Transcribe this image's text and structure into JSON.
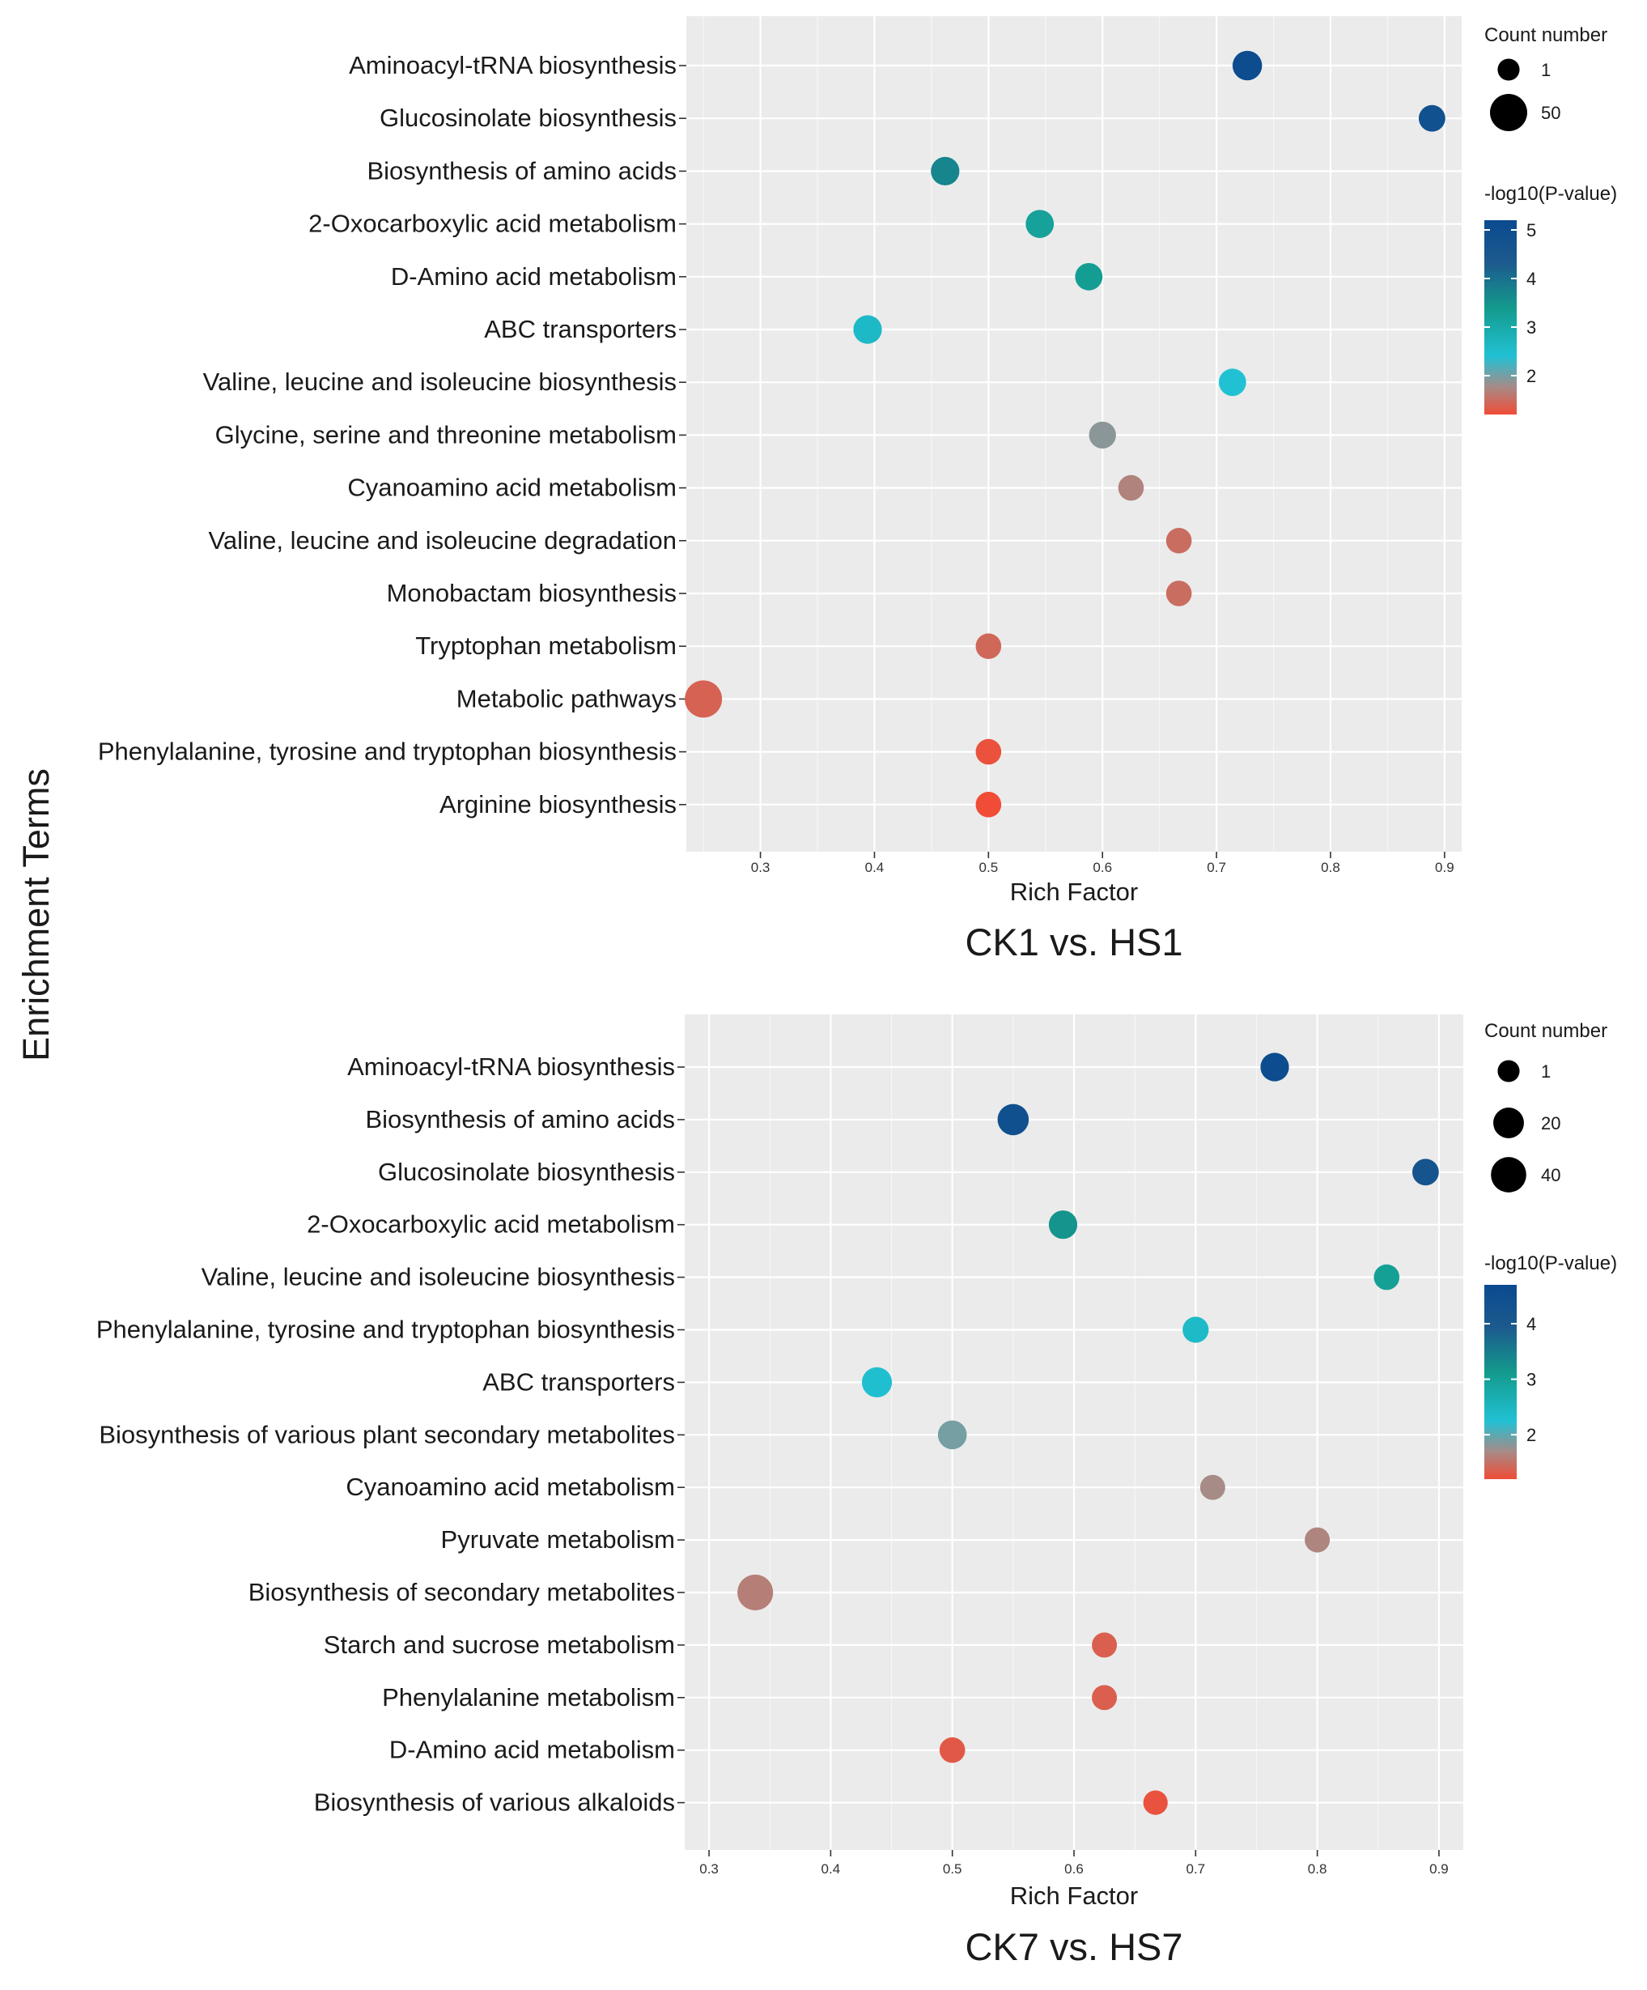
{
  "y_axis_title": "Enrichment Terms",
  "chart_data": [
    {
      "type": "scatter",
      "title": "CK1 vs. HS1",
      "xlabel": "Rich Factor",
      "ylabel": "Enrichment Terms",
      "xlim": [
        0.235,
        0.915
      ],
      "xticks": [
        0.3,
        0.4,
        0.5,
        0.6,
        0.7,
        0.8,
        0.9
      ],
      "xtick_labels": [
        "0.3",
        "0.4",
        "0.5",
        "0.6",
        "0.7",
        "0.8",
        "0.9"
      ],
      "terms": [
        "Aminoacyl-tRNA biosynthesis",
        "Glucosinolate biosynthesis",
        "Biosynthesis of amino acids",
        "2-Oxocarboxylic acid metabolism",
        "D-Amino acid metabolism",
        "ABC transporters",
        "Valine, leucine and isoleucine biosynthesis",
        "Glycine, serine and threonine metabolism",
        "Cyanoamino acid metabolism",
        "Valine, leucine and isoleucine degradation",
        "Monobactam biosynthesis",
        "Tryptophan metabolism",
        "Metabolic pathways",
        "Phenylalanine, tyrosine and tryptophan biosynthesis",
        "Arginine biosynthesis"
      ],
      "rich_factor": [
        0.727,
        0.889,
        0.462,
        0.545,
        0.588,
        0.394,
        0.714,
        0.6,
        0.625,
        0.667,
        0.667,
        0.5,
        0.25,
        0.5,
        0.5
      ],
      "neg_log10_p": [
        5.1,
        4.8,
        3.7,
        3.2,
        3.3,
        2.6,
        2.4,
        1.9,
        1.7,
        1.5,
        1.5,
        1.45,
        1.4,
        1.25,
        1.2
      ],
      "count": [
        16,
        8,
        13,
        12,
        10,
        13,
        10,
        9,
        6,
        6,
        6,
        6,
        50,
        6,
        6
      ],
      "size_legend": {
        "title": "Count number",
        "values": [
          1,
          50
        ],
        "labels": [
          "1",
          "50"
        ]
      },
      "color_legend": {
        "title": "-log10(P-value)",
        "min": 1.2,
        "max": 5.2,
        "ticks": [
          2,
          3,
          4,
          5
        ],
        "tick_labels": [
          "2",
          "3",
          "4",
          "5"
        ]
      }
    },
    {
      "type": "scatter",
      "title": "CK7 vs. HS7",
      "xlabel": "Rich Factor",
      "ylabel": "Enrichment Terms",
      "xlim": [
        0.28,
        0.92
      ],
      "xticks": [
        0.3,
        0.4,
        0.5,
        0.6,
        0.7,
        0.8,
        0.9
      ],
      "xtick_labels": [
        "0.3",
        "0.4",
        "0.5",
        "0.6",
        "0.7",
        "0.8",
        "0.9"
      ],
      "terms": [
        "Aminoacyl-tRNA biosynthesis",
        "Biosynthesis of amino acids",
        "Glucosinolate biosynthesis",
        "2-Oxocarboxylic acid metabolism",
        "Valine, leucine and isoleucine biosynthesis",
        "Phenylalanine, tyrosine and tryptophan biosynthesis",
        "ABC transporters",
        "Biosynthesis of various plant secondary metabolites",
        "Cyanoamino acid metabolism",
        "Pyruvate metabolism",
        "Biosynthesis of secondary metabolites",
        "Starch and sucrose metabolism",
        "Phenylalanine metabolism",
        "D-Amino acid metabolism",
        "Biosynthesis of various alkaloids"
      ],
      "rich_factor": [
        0.765,
        0.55,
        0.889,
        0.591,
        0.857,
        0.7,
        0.438,
        0.5,
        0.714,
        0.8,
        0.338,
        0.625,
        0.625,
        0.5,
        0.667
      ],
      "neg_log10_p": [
        4.6,
        4.4,
        4.2,
        3.2,
        3.0,
        2.4,
        2.3,
        1.9,
        1.7,
        1.65,
        1.6,
        1.35,
        1.35,
        1.3,
        1.25
      ],
      "count": [
        13,
        22,
        8,
        13,
        6,
        7,
        18,
        14,
        5,
        5,
        42,
        5,
        5,
        6,
        4
      ],
      "size_legend": {
        "title": "Count number",
        "values": [
          1,
          20,
          40
        ],
        "labels": [
          "1",
          "20",
          "40"
        ]
      },
      "color_legend": {
        "title": "-log10(P-value)",
        "min": 1.2,
        "max": 4.7,
        "ticks": [
          2,
          3,
          4
        ],
        "tick_labels": [
          "2",
          "3",
          "4"
        ]
      }
    }
  ]
}
